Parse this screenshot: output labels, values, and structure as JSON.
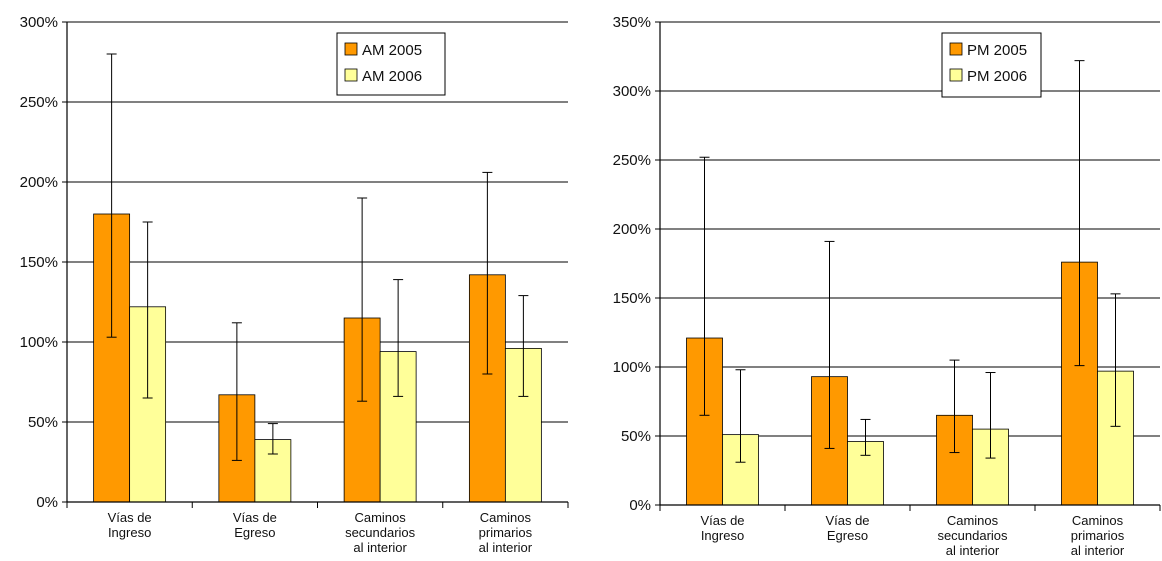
{
  "chart_data": [
    {
      "type": "bar",
      "title": "",
      "xlabel": "",
      "ylabel": "",
      "ylim": [
        0,
        300
      ],
      "yticks": [
        0,
        50,
        100,
        150,
        200,
        250,
        300
      ],
      "ytick_labels": [
        "0%",
        "50%",
        "100%",
        "150%",
        "200%",
        "250%",
        "300%"
      ],
      "grid": true,
      "legend_position": "top-right",
      "categories": [
        [
          "Vías de",
          "Ingreso"
        ],
        [
          "Vías de",
          "Egreso"
        ],
        [
          "Caminos",
          "secundarios",
          "al interior"
        ],
        [
          "Caminos",
          "primarios",
          "al interior"
        ]
      ],
      "series": [
        {
          "name": "AM 2005",
          "color": "#FF9900",
          "values": [
            180,
            67,
            115,
            142
          ],
          "error_low": [
            103,
            26,
            63,
            80
          ],
          "error_high": [
            280,
            112,
            190,
            206
          ]
        },
        {
          "name": "AM 2006",
          "color": "#FFFF99",
          "values": [
            122,
            39,
            94,
            96
          ],
          "error_low": [
            65,
            30,
            66,
            66
          ],
          "error_high": [
            175,
            49,
            139,
            129
          ]
        }
      ]
    },
    {
      "type": "bar",
      "title": "",
      "xlabel": "",
      "ylabel": "",
      "ylim": [
        0,
        350
      ],
      "yticks": [
        0,
        50,
        100,
        150,
        200,
        250,
        300,
        350
      ],
      "ytick_labels": [
        "0%",
        "50%",
        "100%",
        "150%",
        "200%",
        "250%",
        "300%",
        "350%"
      ],
      "grid": true,
      "legend_position": "top-right",
      "categories": [
        [
          "Vías de",
          "Ingreso"
        ],
        [
          "Vías de",
          "Egreso"
        ],
        [
          "Caminos",
          "secundarios",
          "al interior"
        ],
        [
          "Caminos",
          "primarios",
          "al interior"
        ]
      ],
      "series": [
        {
          "name": "PM 2005",
          "color": "#FF9900",
          "values": [
            121,
            93,
            65,
            176
          ],
          "error_low": [
            65,
            41,
            38,
            101
          ],
          "error_high": [
            252,
            191,
            105,
            322
          ]
        },
        {
          "name": "PM 2006",
          "color": "#FFFF99",
          "values": [
            51,
            46,
            55,
            97
          ],
          "error_low": [
            31,
            36,
            34,
            57
          ],
          "error_high": [
            98,
            62,
            96,
            153
          ]
        }
      ]
    }
  ]
}
